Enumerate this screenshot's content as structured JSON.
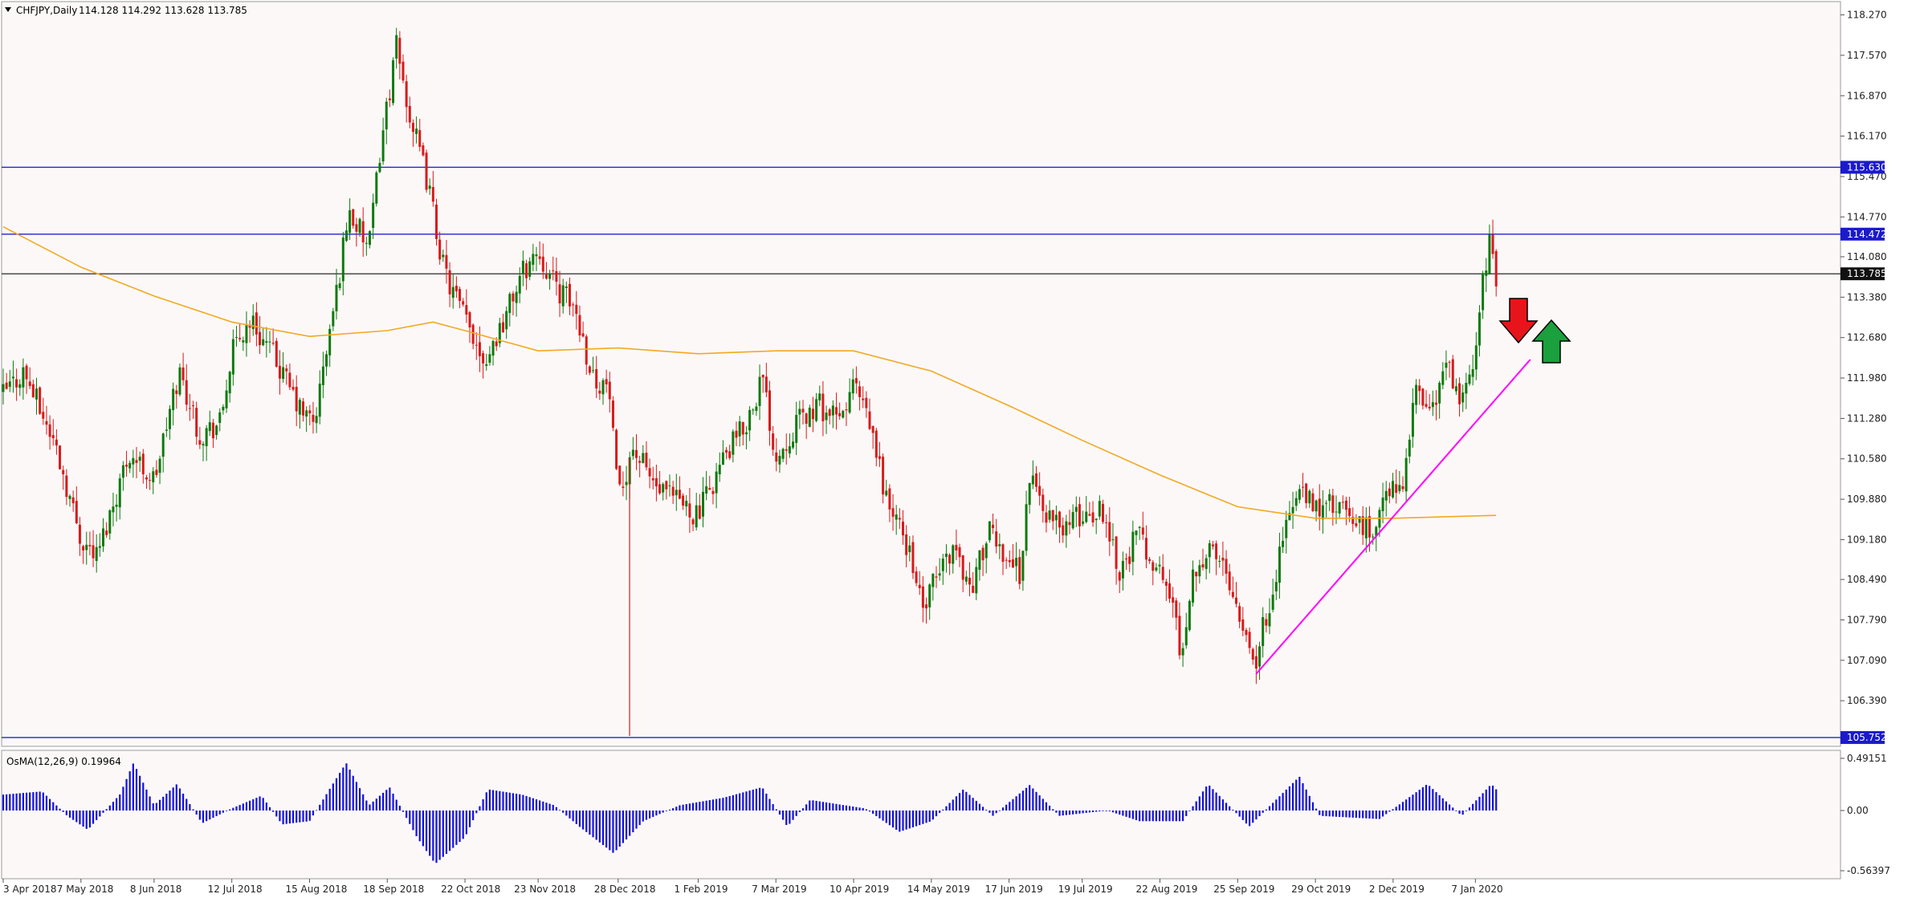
{
  "header": {
    "title": "CHFJPY,Daily",
    "ohlc": "114.128 114.292 113.628 113.785"
  },
  "colors": {
    "background": "#fdf8f8",
    "bull": "#0d7a0d",
    "bear": "#d81a1a",
    "ma": "#f2a922",
    "hline": "#2222cc",
    "price_line": "#111111",
    "trendline": "#ff00ff",
    "osma": "#1111dd",
    "arrow_down": "#e8141b",
    "arrow_up": "#1aa03c"
  },
  "price_axis": {
    "labels": [
      "118.270",
      "117.570",
      "116.870",
      "116.170",
      "115.470",
      "114.770",
      "114.080",
      "113.380",
      "112.680",
      "111.980",
      "111.280",
      "110.580",
      "109.880",
      "109.180",
      "108.490",
      "107.790",
      "107.090",
      "106.390"
    ],
    "tags": [
      {
        "label": "115.630",
        "value": 115.63
      },
      {
        "label": "114.472",
        "value": 114.472
      },
      {
        "label": "113.785",
        "value": 113.785
      },
      {
        "label": "105.752",
        "value": 105.752
      }
    ]
  },
  "indicator": {
    "title": "OsMA(12,26,9) 0.19964",
    "labels": [
      "0.49151",
      "0.00",
      "-0.56397"
    ]
  },
  "time_axis": {
    "labels": [
      "3 Apr 2018",
      "7 May 2018",
      "8 Jun 2018",
      "12 Jul 2018",
      "15 Aug 2018",
      "18 Sep 2018",
      "22 Oct 2018",
      "23 Nov 2018",
      "28 Dec 2018",
      "1 Feb 2019",
      "7 Mar 2019",
      "10 Apr 2019",
      "14 May 2019",
      "17 Jun 2019",
      "19 Jul 2019",
      "22 Aug 2019",
      "25 Sep 2019",
      "29 Oct 2019",
      "2 Dec 2019",
      "7 Jan 2020"
    ]
  },
  "chart_data": {
    "type": "candlestick",
    "title": "CHFJPY,Daily",
    "ylim": [
      105.6,
      118.5
    ],
    "x_range": [
      "3 Apr 2018",
      "16 Jan 2020"
    ],
    "horizontal_lines": [
      115.63,
      114.472,
      113.785,
      105.752
    ],
    "close_path": [
      {
        "date": "2018-04-03",
        "close": 111.7
      },
      {
        "date": "2018-04-12",
        "close": 112.1
      },
      {
        "date": "2018-04-26",
        "close": 110.8
      },
      {
        "date": "2018-05-07",
        "close": 109.2
      },
      {
        "date": "2018-05-14",
        "close": 108.9
      },
      {
        "date": "2018-05-28",
        "close": 110.7
      },
      {
        "date": "2018-06-08",
        "close": 110.2
      },
      {
        "date": "2018-06-19",
        "close": 112.1
      },
      {
        "date": "2018-06-28",
        "close": 111.0
      },
      {
        "date": "2018-07-07",
        "close": 111.2
      },
      {
        "date": "2018-07-12",
        "close": 112.4
      },
      {
        "date": "2018-07-20",
        "close": 113.0
      },
      {
        "date": "2018-07-31",
        "close": 112.3
      },
      {
        "date": "2018-08-11",
        "close": 111.4
      },
      {
        "date": "2018-08-17",
        "close": 111.2
      },
      {
        "date": "2018-08-27",
        "close": 113.5
      },
      {
        "date": "2018-09-01",
        "close": 114.9
      },
      {
        "date": "2018-09-10",
        "close": 114.2
      },
      {
        "date": "2018-09-15",
        "close": 116.0
      },
      {
        "date": "2018-09-22",
        "close": 117.7
      },
      {
        "date": "2018-09-28",
        "close": 116.5
      },
      {
        "date": "2018-10-06",
        "close": 115.3
      },
      {
        "date": "2018-10-13",
        "close": 113.8
      },
      {
        "date": "2018-10-22",
        "close": 113.0
      },
      {
        "date": "2018-10-31",
        "close": 112.3
      },
      {
        "date": "2018-11-08",
        "close": 113.0
      },
      {
        "date": "2018-11-16",
        "close": 113.8
      },
      {
        "date": "2018-11-23",
        "close": 114.2
      },
      {
        "date": "2018-11-30",
        "close": 113.6
      },
      {
        "date": "2018-12-09",
        "close": 113.2
      },
      {
        "date": "2018-12-17",
        "close": 112.0
      },
      {
        "date": "2018-12-24",
        "close": 111.8
      },
      {
        "date": "2018-12-28",
        "close": 109.8
      },
      {
        "date": "2019-01-03",
        "close": 110.8
      },
      {
        "date": "2019-01-15",
        "close": 110.0
      },
      {
        "date": "2019-01-25",
        "close": 109.8
      },
      {
        "date": "2019-02-01",
        "close": 109.6
      },
      {
        "date": "2019-02-11",
        "close": 110.5
      },
      {
        "date": "2019-02-22",
        "close": 111.2
      },
      {
        "date": "2019-03-01",
        "close": 112.0
      },
      {
        "date": "2019-03-07",
        "close": 110.6
      },
      {
        "date": "2019-03-16",
        "close": 111.2
      },
      {
        "date": "2019-03-26",
        "close": 111.5
      },
      {
        "date": "2019-04-04",
        "close": 111.2
      },
      {
        "date": "2019-04-10",
        "close": 111.9
      },
      {
        "date": "2019-04-18",
        "close": 111.0
      },
      {
        "date": "2019-04-25",
        "close": 109.8
      },
      {
        "date": "2019-05-01",
        "close": 109.3
      },
      {
        "date": "2019-05-06",
        "close": 108.8
      },
      {
        "date": "2019-05-10",
        "close": 107.9
      },
      {
        "date": "2019-05-17",
        "close": 108.6
      },
      {
        "date": "2019-05-24",
        "close": 109.1
      },
      {
        "date": "2019-05-31",
        "close": 108.3
      },
      {
        "date": "2019-06-08",
        "close": 109.3
      },
      {
        "date": "2019-06-14",
        "close": 109.0
      },
      {
        "date": "2019-06-22",
        "close": 108.6
      },
      {
        "date": "2019-06-26",
        "close": 110.3
      },
      {
        "date": "2019-07-04",
        "close": 109.6
      },
      {
        "date": "2019-07-09",
        "close": 109.4
      },
      {
        "date": "2019-07-19",
        "close": 109.6
      },
      {
        "date": "2019-07-28",
        "close": 109.7
      },
      {
        "date": "2019-08-05",
        "close": 108.6
      },
      {
        "date": "2019-08-12",
        "close": 109.3
      },
      {
        "date": "2019-08-19",
        "close": 108.8
      },
      {
        "date": "2019-08-27",
        "close": 108.2
      },
      {
        "date": "2019-08-31",
        "close": 107.2
      },
      {
        "date": "2019-09-06",
        "close": 108.7
      },
      {
        "date": "2019-09-12",
        "close": 109.0
      },
      {
        "date": "2019-09-20",
        "close": 108.7
      },
      {
        "date": "2019-09-30",
        "close": 107.4
      },
      {
        "date": "2019-10-03",
        "close": 107.1
      },
      {
        "date": "2019-10-10",
        "close": 108.3
      },
      {
        "date": "2019-10-17",
        "close": 109.6
      },
      {
        "date": "2019-10-22",
        "close": 110.0
      },
      {
        "date": "2019-10-29",
        "close": 109.7
      },
      {
        "date": "2019-11-05",
        "close": 109.8
      },
      {
        "date": "2019-11-15",
        "close": 109.5
      },
      {
        "date": "2019-11-22",
        "close": 109.3
      },
      {
        "date": "2019-11-29",
        "close": 109.9
      },
      {
        "date": "2019-12-06",
        "close": 110.2
      },
      {
        "date": "2019-12-12",
        "close": 111.7
      },
      {
        "date": "2019-12-20",
        "close": 111.5
      },
      {
        "date": "2019-12-26",
        "close": 112.3
      },
      {
        "date": "2019-12-31",
        "close": 111.4
      },
      {
        "date": "2020-01-05",
        "close": 112.0
      },
      {
        "date": "2020-01-09",
        "close": 113.3
      },
      {
        "date": "2020-01-13",
        "close": 114.3
      },
      {
        "date": "2020-01-16",
        "close": 113.785
      }
    ],
    "moving_average": [
      {
        "date": "2018-04-03",
        "value": 114.6
      },
      {
        "date": "2018-05-07",
        "value": 113.9
      },
      {
        "date": "2018-06-08",
        "value": 113.4
      },
      {
        "date": "2018-07-12",
        "value": 112.95
      },
      {
        "date": "2018-08-15",
        "value": 112.7
      },
      {
        "date": "2018-09-18",
        "value": 112.8
      },
      {
        "date": "2018-10-08",
        "value": 112.95
      },
      {
        "date": "2018-10-22",
        "value": 112.8
      },
      {
        "date": "2018-11-23",
        "value": 112.45
      },
      {
        "date": "2018-12-28",
        "value": 112.5
      },
      {
        "date": "2019-02-01",
        "value": 112.4
      },
      {
        "date": "2019-03-07",
        "value": 112.45
      },
      {
        "date": "2019-04-10",
        "value": 112.45
      },
      {
        "date": "2019-05-14",
        "value": 112.1
      },
      {
        "date": "2019-06-17",
        "value": 111.5
      },
      {
        "date": "2019-07-19",
        "value": 110.9
      },
      {
        "date": "2019-08-22",
        "value": 110.3
      },
      {
        "date": "2019-09-25",
        "value": 109.75
      },
      {
        "date": "2019-10-29",
        "value": 109.55
      },
      {
        "date": "2019-12-02",
        "value": 109.55
      },
      {
        "date": "2020-01-16",
        "value": 109.6
      }
    ],
    "trendline": [
      {
        "date": "2019-10-03",
        "value": 106.85
      },
      {
        "date": "2020-01-31",
        "value": 112.3
      }
    ],
    "osma": {
      "name": "OsMA(12,26,9)",
      "current": 0.19964,
      "ylim": [
        -0.56397,
        0.49151
      ],
      "samples": [
        {
          "date": "2018-04-03",
          "value": 0.15
        },
        {
          "date": "2018-04-20",
          "value": 0.18
        },
        {
          "date": "2018-05-01",
          "value": -0.05
        },
        {
          "date": "2018-05-10",
          "value": -0.18
        },
        {
          "date": "2018-05-24",
          "value": 0.15
        },
        {
          "date": "2018-05-30",
          "value": 0.45
        },
        {
          "date": "2018-06-08",
          "value": 0.05
        },
        {
          "date": "2018-06-18",
          "value": 0.25
        },
        {
          "date": "2018-06-29",
          "value": -0.12
        },
        {
          "date": "2018-07-12",
          "value": 0.02
        },
        {
          "date": "2018-07-25",
          "value": 0.14
        },
        {
          "date": "2018-08-03",
          "value": -0.13
        },
        {
          "date": "2018-08-15",
          "value": -0.1
        },
        {
          "date": "2018-08-31",
          "value": 0.45
        },
        {
          "date": "2018-09-10",
          "value": 0.05
        },
        {
          "date": "2018-09-19",
          "value": 0.22
        },
        {
          "date": "2018-10-01",
          "value": -0.25
        },
        {
          "date": "2018-10-09",
          "value": -0.5
        },
        {
          "date": "2018-10-22",
          "value": -0.25
        },
        {
          "date": "2018-11-01",
          "value": 0.2
        },
        {
          "date": "2018-11-16",
          "value": 0.15
        },
        {
          "date": "2018-11-30",
          "value": 0.05
        },
        {
          "date": "2018-12-11",
          "value": -0.15
        },
        {
          "date": "2018-12-26",
          "value": -0.4
        },
        {
          "date": "2019-01-08",
          "value": -0.1
        },
        {
          "date": "2019-01-24",
          "value": 0.05
        },
        {
          "date": "2019-02-12",
          "value": 0.12
        },
        {
          "date": "2019-03-01",
          "value": 0.22
        },
        {
          "date": "2019-03-12",
          "value": -0.15
        },
        {
          "date": "2019-03-22",
          "value": 0.1
        },
        {
          "date": "2019-04-15",
          "value": 0.02
        },
        {
          "date": "2019-04-30",
          "value": -0.2
        },
        {
          "date": "2019-05-14",
          "value": -0.1
        },
        {
          "date": "2019-05-28",
          "value": 0.2
        },
        {
          "date": "2019-06-10",
          "value": -0.05
        },
        {
          "date": "2019-06-26",
          "value": 0.24
        },
        {
          "date": "2019-07-09",
          "value": -0.05
        },
        {
          "date": "2019-07-30",
          "value": 0.0
        },
        {
          "date": "2019-08-13",
          "value": -0.1
        },
        {
          "date": "2019-09-01",
          "value": -0.1
        },
        {
          "date": "2019-09-12",
          "value": 0.25
        },
        {
          "date": "2019-09-30",
          "value": -0.15
        },
        {
          "date": "2019-10-22",
          "value": 0.32
        },
        {
          "date": "2019-10-31",
          "value": -0.05
        },
        {
          "date": "2019-11-26",
          "value": -0.08
        },
        {
          "date": "2019-12-17",
          "value": 0.25
        },
        {
          "date": "2020-01-01",
          "value": -0.05
        },
        {
          "date": "2020-01-14",
          "value": 0.25
        },
        {
          "date": "2020-01-16",
          "value": 0.19964
        }
      ]
    }
  }
}
